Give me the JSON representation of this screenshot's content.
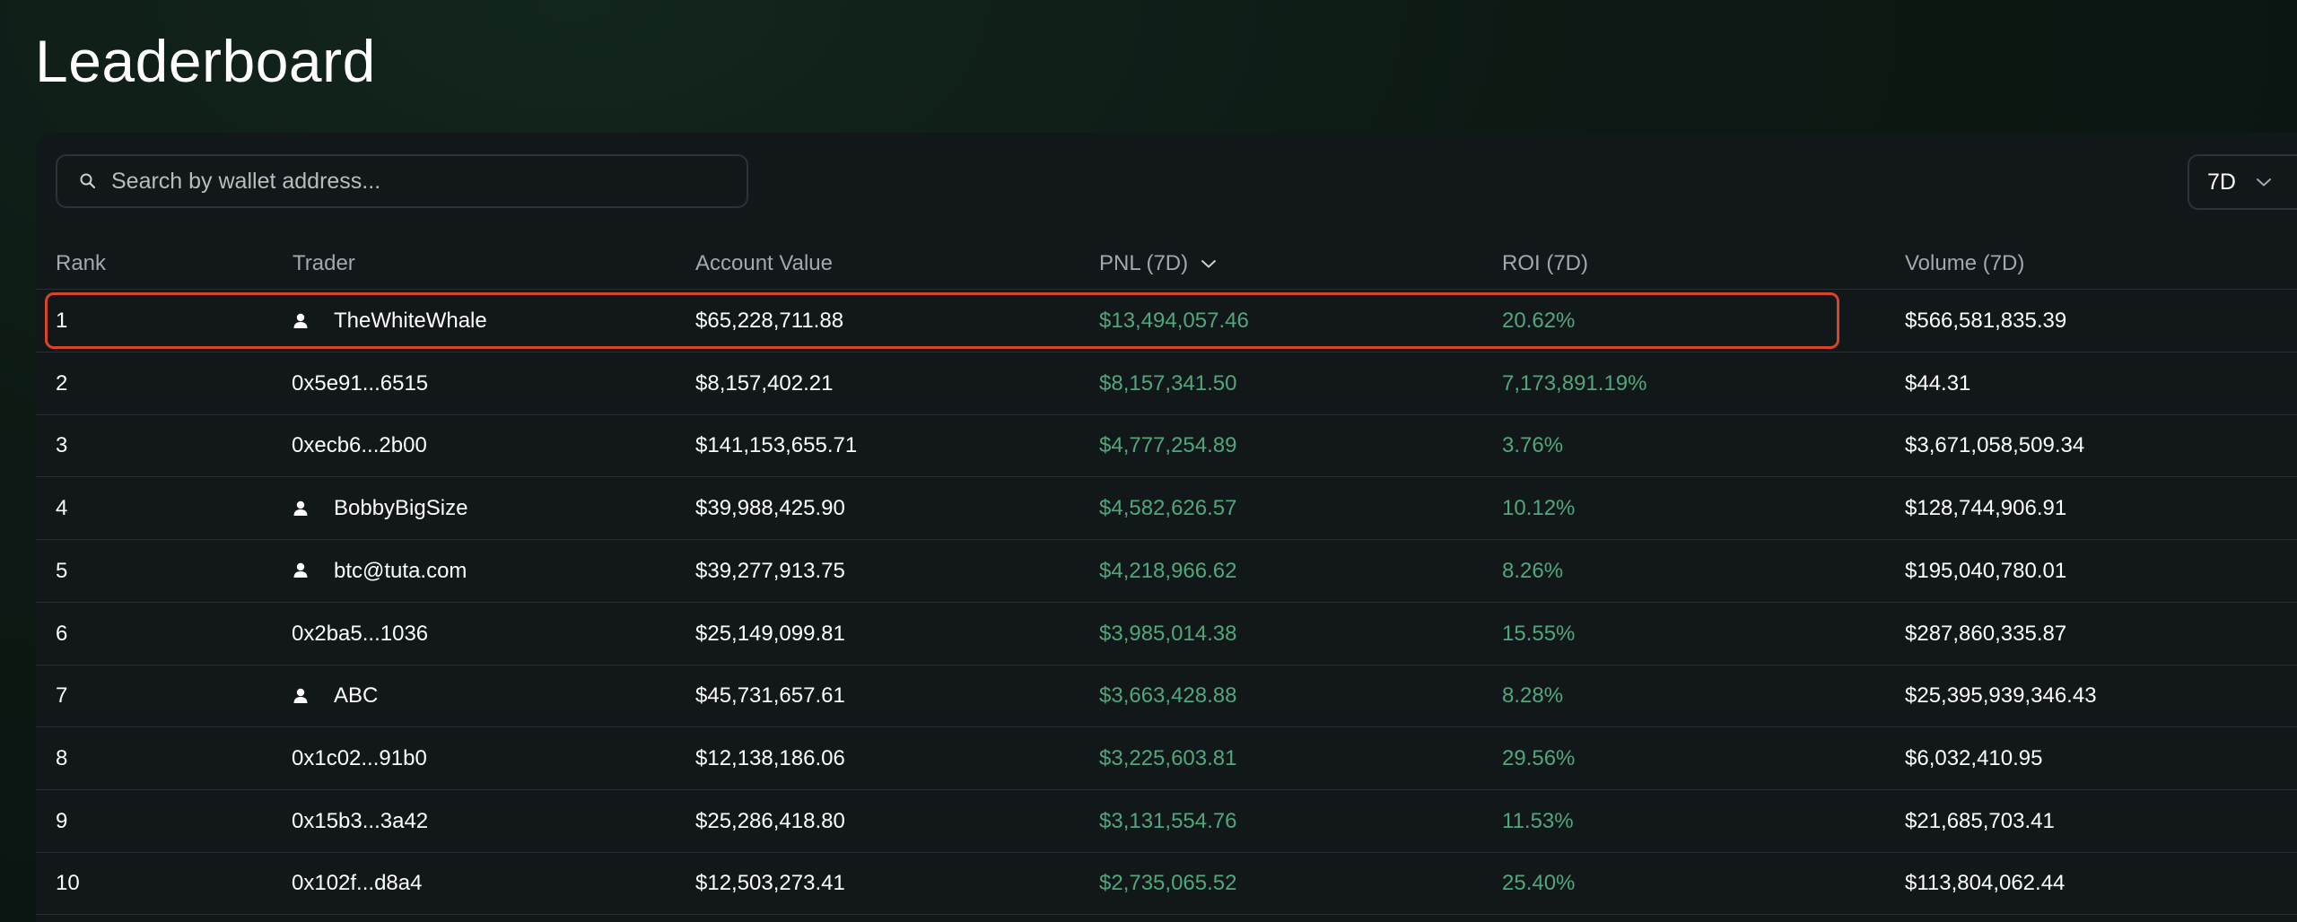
{
  "page": {
    "title": "Leaderboard"
  },
  "search": {
    "placeholder": "Search by wallet address...",
    "value": ""
  },
  "period_filter": {
    "value": "7D"
  },
  "table": {
    "columns": {
      "rank": "Rank",
      "trader": "Trader",
      "account_value": "Account Value",
      "pnl": "PNL (7D)",
      "roi": "ROI (7D)",
      "volume": "Volume (7D)"
    },
    "sorted_by": "pnl",
    "sort_direction": "descending",
    "rows": [
      {
        "rank": "1",
        "trader": "TheWhiteWhale",
        "has_profile": true,
        "account_value": "$65,228,711.88",
        "pnl": "$13,494,057.46",
        "roi": "20.62%",
        "volume": "$566,581,835.39"
      },
      {
        "rank": "2",
        "trader": "0x5e91...6515",
        "has_profile": false,
        "account_value": "$8,157,402.21",
        "pnl": "$8,157,341.50",
        "roi": "7,173,891.19%",
        "volume": "$44.31"
      },
      {
        "rank": "3",
        "trader": "0xecb6...2b00",
        "has_profile": false,
        "account_value": "$141,153,655.71",
        "pnl": "$4,777,254.89",
        "roi": "3.76%",
        "volume": "$3,671,058,509.34"
      },
      {
        "rank": "4",
        "trader": "BobbyBigSize",
        "has_profile": true,
        "account_value": "$39,988,425.90",
        "pnl": "$4,582,626.57",
        "roi": "10.12%",
        "volume": "$128,744,906.91"
      },
      {
        "rank": "5",
        "trader": "btc@tuta.com",
        "has_profile": true,
        "account_value": "$39,277,913.75",
        "pnl": "$4,218,966.62",
        "roi": "8.26%",
        "volume": "$195,040,780.01"
      },
      {
        "rank": "6",
        "trader": "0x2ba5...1036",
        "has_profile": false,
        "account_value": "$25,149,099.81",
        "pnl": "$3,985,014.38",
        "roi": "15.55%",
        "volume": "$287,860,335.87"
      },
      {
        "rank": "7",
        "trader": "ABC",
        "has_profile": true,
        "account_value": "$45,731,657.61",
        "pnl": "$3,663,428.88",
        "roi": "8.28%",
        "volume": "$25,395,939,346.43"
      },
      {
        "rank": "8",
        "trader": "0x1c02...91b0",
        "has_profile": false,
        "account_value": "$12,138,186.06",
        "pnl": "$3,225,603.81",
        "roi": "29.56%",
        "volume": "$6,032,410.95"
      },
      {
        "rank": "9",
        "trader": "0x15b3...3a42",
        "has_profile": false,
        "account_value": "$25,286,418.80",
        "pnl": "$3,131,554.76",
        "roi": "11.53%",
        "volume": "$21,685,703.41"
      },
      {
        "rank": "10",
        "trader": "0x102f...d8a4",
        "has_profile": false,
        "account_value": "$12,503,273.41",
        "pnl": "$2,735,065.52",
        "roi": "25.40%",
        "volume": "$113,804,062.44"
      }
    ]
  },
  "annotation": {
    "highlighted_rank": "1",
    "color": "#d9432a"
  },
  "colors": {
    "positive": "#4fa77a",
    "panel": "#12181a",
    "header_text": "#a2a8ab"
  },
  "icons": {
    "search": "search-icon",
    "dropdown": "chevron-down-icon",
    "sort": "chevron-down-icon",
    "profile": "user-icon"
  }
}
